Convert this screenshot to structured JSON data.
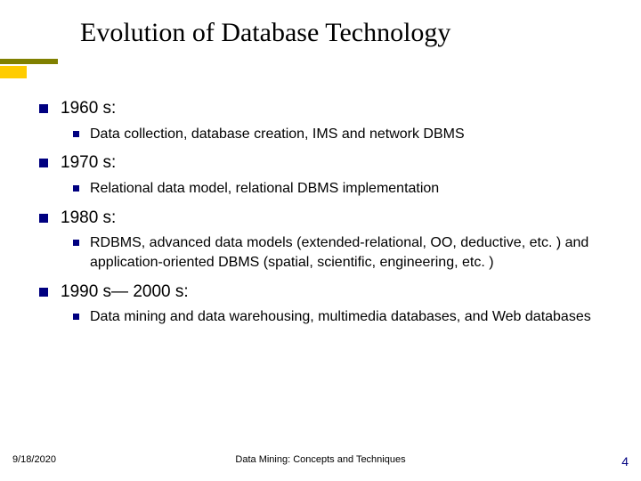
{
  "title": "Evolution of Database Technology",
  "accent": {
    "long_color": "#808000",
    "short_color": "#ffcc00"
  },
  "bullet_color": "#000080",
  "sections": [
    {
      "heading": "1960 s:",
      "items": [
        "Data collection, database creation, IMS and network DBMS"
      ]
    },
    {
      "heading": "1970 s:",
      "items": [
        "Relational data model, relational DBMS implementation"
      ]
    },
    {
      "heading": "1980 s:",
      "items": [
        "RDBMS, advanced data models (extended-relational, OO, deductive, etc. ) and application-oriented DBMS (spatial, scientific, engineering, etc. )"
      ]
    },
    {
      "heading": "1990 s— 2000 s:",
      "items": [
        "Data mining and data warehousing, multimedia databases, and Web databases"
      ]
    }
  ],
  "footer": {
    "date": "9/18/2020",
    "center": "Data Mining: Concepts and Techniques",
    "page": "4"
  }
}
